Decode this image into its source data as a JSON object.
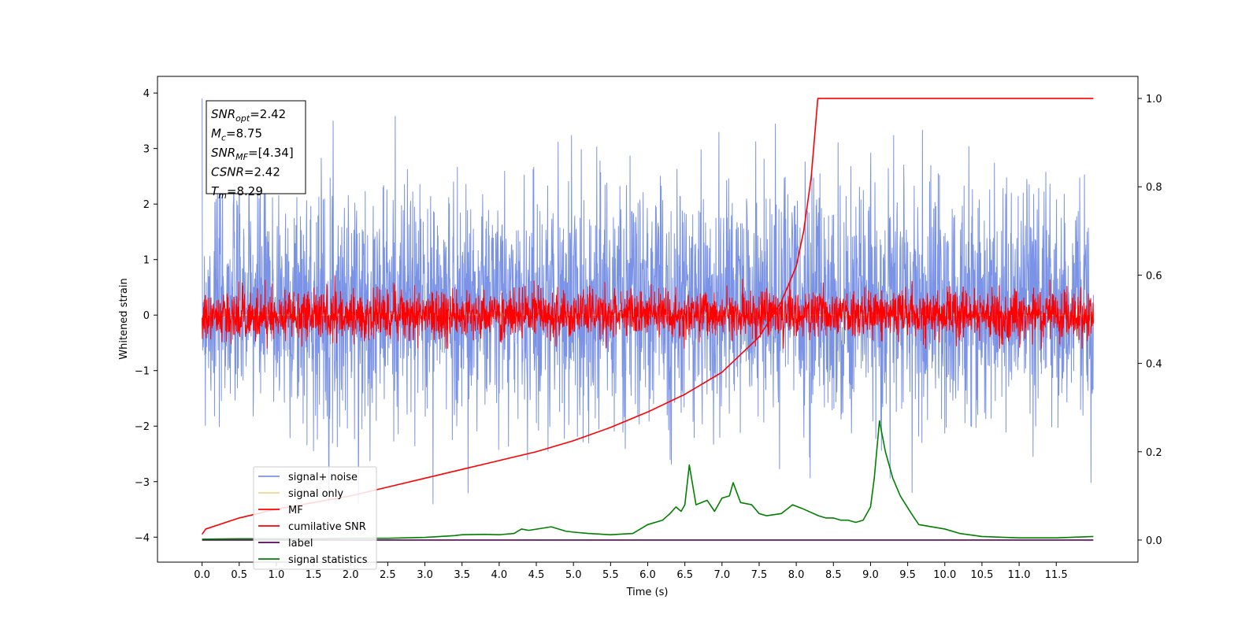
{
  "chart_data": {
    "type": "line",
    "xlabel": "Time (s)",
    "ylabel": "Whitened strain",
    "xlim": [
      -0.6,
      12.6
    ],
    "ylim": [
      -4.45,
      4.3
    ],
    "y2lim": [
      -0.05,
      1.05
    ],
    "xticks": [
      "0.0",
      "0.5",
      "1.0",
      "1.5",
      "2.0",
      "2.5",
      "3.0",
      "3.5",
      "4.0",
      "4.5",
      "5.0",
      "5.5",
      "6.0",
      "6.5",
      "7.0",
      "7.5",
      "8.0",
      "8.5",
      "9.0",
      "9.5",
      "10.0",
      "10.5",
      "11.0",
      "11.5"
    ],
    "yticks": [
      "4",
      "3",
      "2",
      "1",
      "0",
      "−1",
      "−2",
      "−3",
      "−4"
    ],
    "y2ticks": [
      "1.0",
      "0.8",
      "0.6",
      "0.4",
      "0.2",
      "0.0"
    ],
    "grid": false,
    "legend_position": "lower-left",
    "annotation": {
      "lines": [
        {
          "base": "SNR",
          "sub": "opt",
          "rest": "=2.42"
        },
        {
          "base": "M",
          "sub": "c",
          "rest": "=8.75"
        },
        {
          "base": "SNR",
          "sub": "MF",
          "rest": "=[4.34]"
        },
        {
          "base": "CSNR",
          "sub": "",
          "rest": "=2.42"
        },
        {
          "base": "T",
          "sub": "m",
          "rest": "=8.29"
        }
      ]
    },
    "series": [
      {
        "name": "signal+ noise",
        "color": "#7b93e6",
        "axis": "left",
        "kind": "noise",
        "x_range": [
          0,
          12
        ],
        "center": 0.2,
        "typical_range": [
          -2.1,
          2.4
        ],
        "extremes": [
          -3.4,
          3.9
        ]
      },
      {
        "name": "signal only",
        "color": "#f5d48a",
        "axis": "left",
        "kind": "flat",
        "x_range": [
          0,
          12
        ]
      },
      {
        "name": "MF",
        "color": "#ff0000",
        "axis": "left",
        "kind": "noise",
        "x_range": [
          0,
          12
        ],
        "center": 0.0,
        "typical_range": [
          -0.35,
          0.55
        ],
        "extremes": [
          -0.6,
          1.0
        ]
      },
      {
        "name": "cumilative SNR",
        "color": "#ff0000",
        "axis": "right",
        "kind": "curve",
        "x": [
          0,
          0.05,
          0.5,
          1.0,
          1.5,
          2.0,
          2.5,
          3.0,
          3.5,
          4.0,
          4.5,
          5.0,
          5.5,
          6.0,
          6.5,
          7.0,
          7.5,
          7.8,
          8.0,
          8.1,
          8.2,
          8.29,
          8.3,
          12.0
        ],
        "y": [
          0.013,
          0.025,
          0.05,
          0.07,
          0.085,
          0.1,
          0.12,
          0.14,
          0.16,
          0.18,
          0.2,
          0.225,
          0.255,
          0.29,
          0.33,
          0.38,
          0.46,
          0.54,
          0.62,
          0.7,
          0.82,
          1.0,
          1.0,
          1.0
        ]
      },
      {
        "name": "label",
        "color": "#5a0060",
        "axis": "right",
        "kind": "curve",
        "x": [
          0,
          12
        ],
        "y": [
          0.0,
          0.0
        ]
      },
      {
        "name": "signal statistics",
        "color": "#008000",
        "axis": "right",
        "kind": "curve",
        "x": [
          0,
          0.5,
          1.0,
          1.5,
          2.0,
          2.5,
          3.0,
          3.4,
          3.5,
          3.8,
          4.0,
          4.2,
          4.3,
          4.4,
          4.7,
          4.9,
          5.0,
          5.2,
          5.5,
          5.8,
          6.0,
          6.2,
          6.3,
          6.38,
          6.45,
          6.5,
          6.56,
          6.65,
          6.8,
          6.9,
          7.0,
          7.1,
          7.15,
          7.25,
          7.4,
          7.5,
          7.6,
          7.8,
          7.95,
          8.1,
          8.3,
          8.4,
          8.5,
          8.6,
          8.7,
          8.8,
          8.9,
          9.0,
          9.05,
          9.12,
          9.2,
          9.3,
          9.4,
          9.55,
          9.65,
          10.0,
          10.2,
          10.5,
          11.0,
          11.5,
          12.0
        ],
        "y": [
          0.002,
          0.003,
          0.003,
          0.003,
          0.004,
          0.004,
          0.006,
          0.01,
          0.012,
          0.013,
          0.012,
          0.015,
          0.025,
          0.022,
          0.03,
          0.02,
          0.018,
          0.015,
          0.012,
          0.015,
          0.035,
          0.045,
          0.06,
          0.075,
          0.065,
          0.08,
          0.17,
          0.08,
          0.09,
          0.065,
          0.095,
          0.1,
          0.13,
          0.085,
          0.08,
          0.06,
          0.055,
          0.06,
          0.08,
          0.07,
          0.055,
          0.05,
          0.05,
          0.045,
          0.045,
          0.04,
          0.045,
          0.075,
          0.14,
          0.27,
          0.2,
          0.14,
          0.1,
          0.06,
          0.035,
          0.025,
          0.015,
          0.008,
          0.005,
          0.005,
          0.008
        ]
      }
    ]
  }
}
